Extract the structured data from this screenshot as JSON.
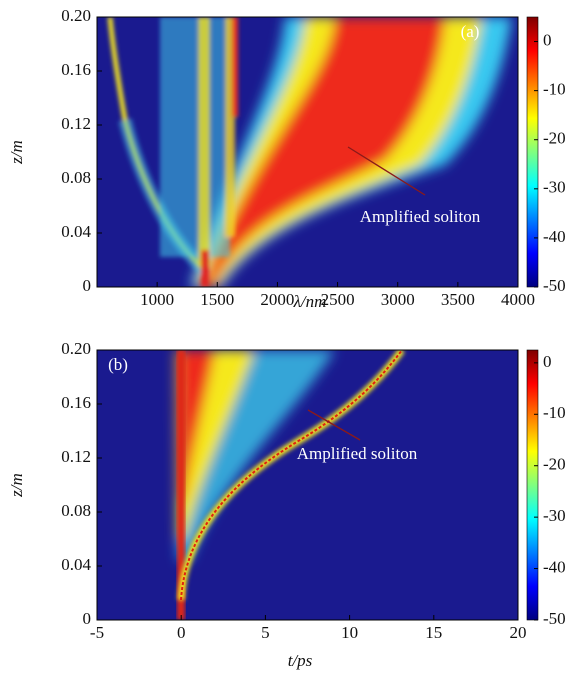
{
  "chart_data": [
    {
      "type": "heatmap",
      "panel_label": "(a)",
      "annotation": "Amplified soliton",
      "xlabel": "λ/nm",
      "ylabel": "z/m",
      "colormap": "jet",
      "xlim": [
        500,
        4000
      ],
      "xticks": [
        1000,
        1500,
        2000,
        2500,
        3000,
        3500,
        4000
      ],
      "ylim": [
        0,
        0.2
      ],
      "yticks": [
        0,
        0.04,
        0.08,
        0.12,
        0.16,
        {
          "value": 0.2,
          "label": "0.20"
        }
      ],
      "clim": [
        -50,
        5
      ],
      "cticks": [
        -50,
        -40,
        -30,
        -20,
        -10,
        0
      ]
    },
    {
      "type": "heatmap",
      "panel_label": "(b)",
      "annotation": "Amplified soliton",
      "xlabel": "t/ps",
      "ylabel": "z/m",
      "colormap": "jet",
      "xlim": [
        -5,
        20
      ],
      "xticks": [
        -5,
        0,
        5,
        10,
        15,
        20
      ],
      "ylim": [
        0,
        0.2
      ],
      "yticks": [
        0,
        0.04,
        0.08,
        0.12,
        0.16,
        {
          "value": 0.2,
          "label": "0.20"
        }
      ],
      "clim": [
        -50,
        2.5
      ],
      "cticks": [
        -50,
        -40,
        -30,
        -20,
        -10,
        0
      ]
    }
  ]
}
